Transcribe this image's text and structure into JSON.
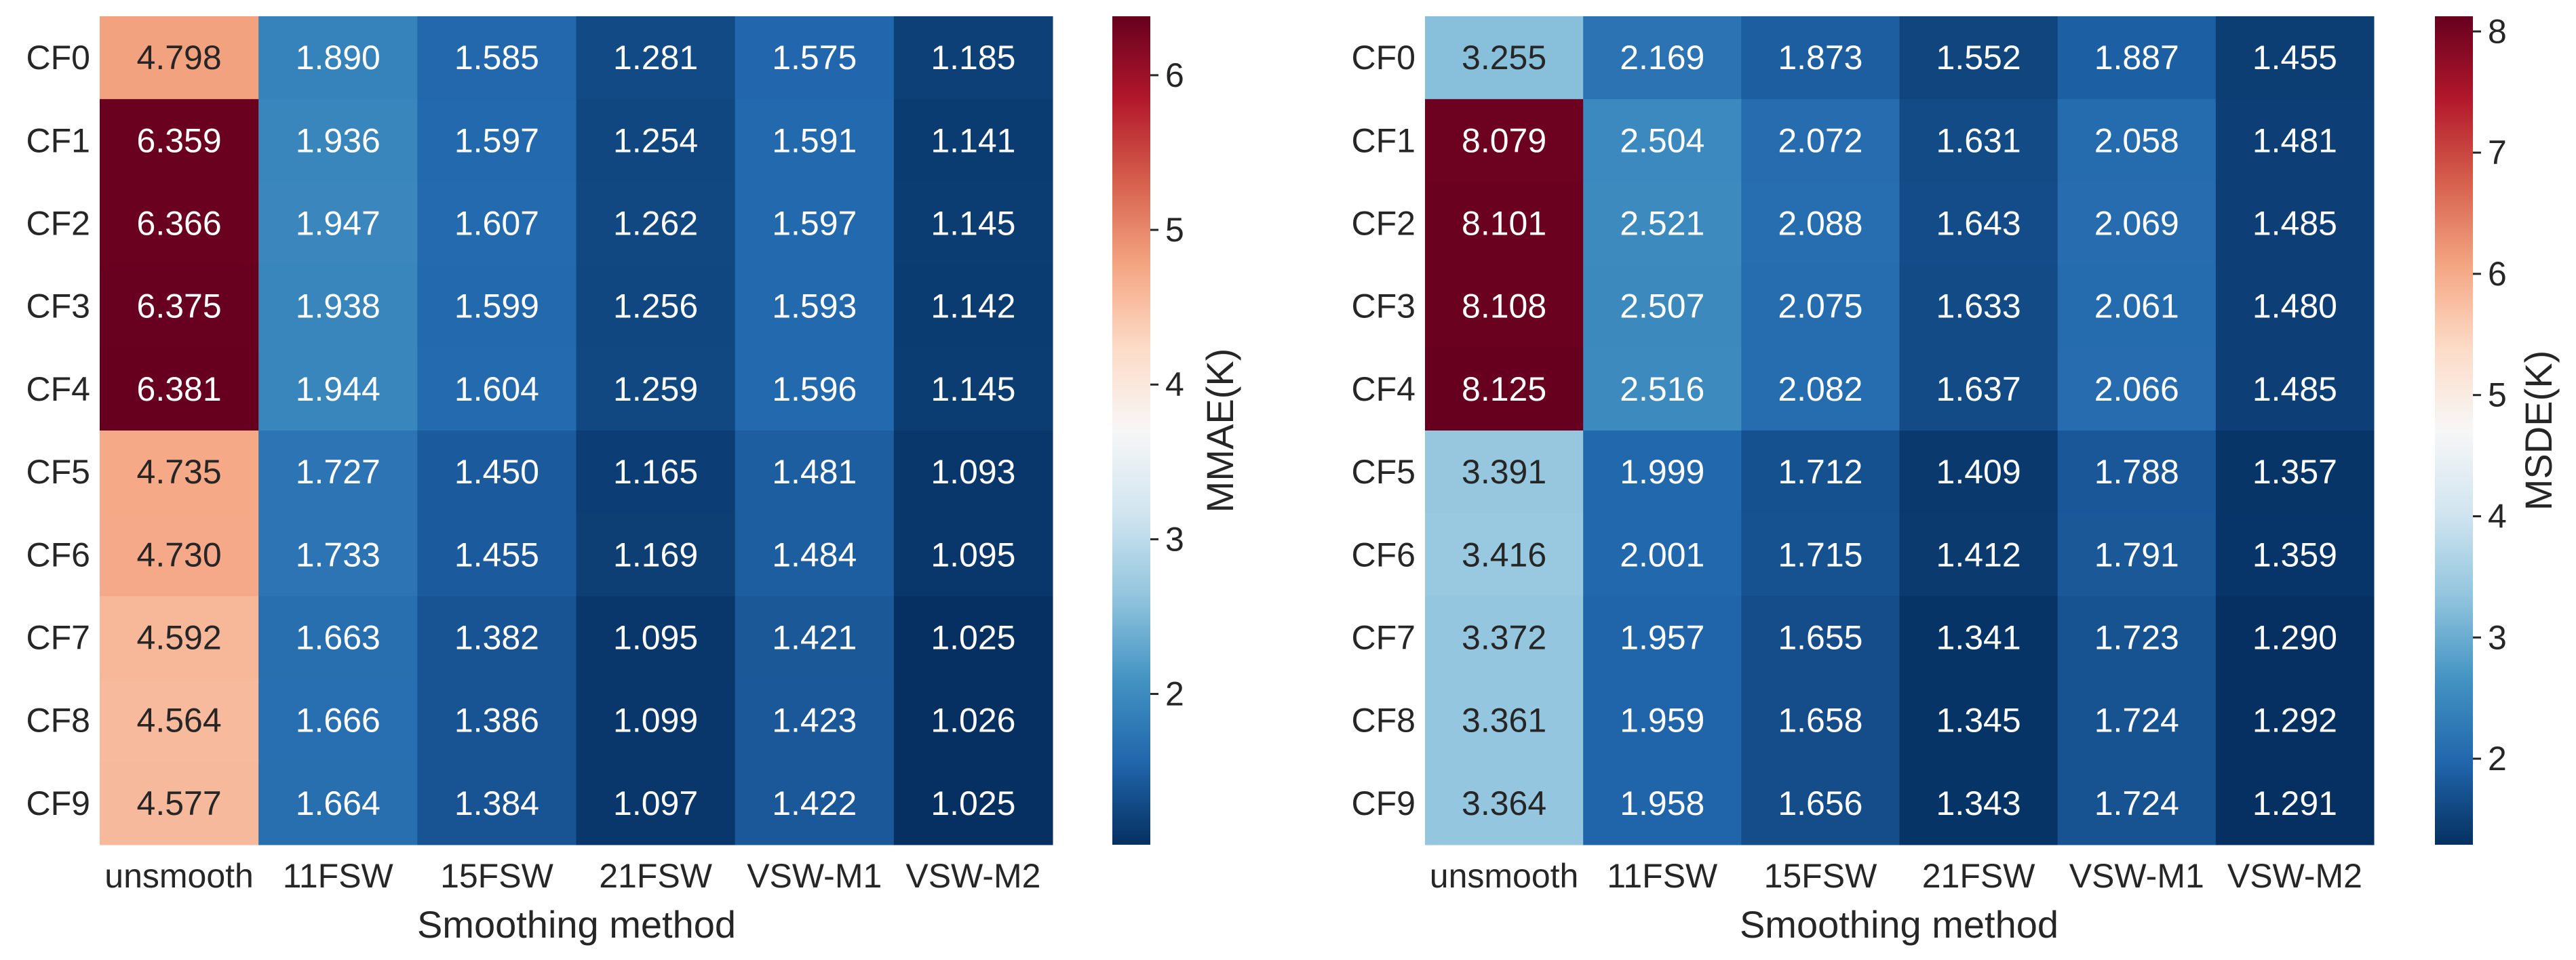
{
  "chart_data": [
    {
      "type": "heatmap",
      "rows": [
        "CF0",
        "CF1",
        "CF2",
        "CF3",
        "CF4",
        "CF5",
        "CF6",
        "CF7",
        "CF8",
        "CF9"
      ],
      "columns": [
        "unsmooth",
        "11FSW",
        "15FSW",
        "21FSW",
        "VSW-M1",
        "VSW-M2"
      ],
      "values": [
        [
          4.798,
          1.89,
          1.585,
          1.281,
          1.575,
          1.185
        ],
        [
          6.359,
          1.936,
          1.597,
          1.254,
          1.591,
          1.141
        ],
        [
          6.366,
          1.947,
          1.607,
          1.262,
          1.597,
          1.145
        ],
        [
          6.375,
          1.938,
          1.599,
          1.256,
          1.593,
          1.142
        ],
        [
          6.381,
          1.944,
          1.604,
          1.259,
          1.596,
          1.145
        ],
        [
          4.735,
          1.727,
          1.45,
          1.165,
          1.481,
          1.093
        ],
        [
          4.73,
          1.733,
          1.455,
          1.169,
          1.484,
          1.095
        ],
        [
          4.592,
          1.663,
          1.382,
          1.095,
          1.421,
          1.025
        ],
        [
          4.564,
          1.666,
          1.386,
          1.099,
          1.423,
          1.026
        ],
        [
          4.577,
          1.664,
          1.384,
          1.097,
          1.422,
          1.025
        ]
      ],
      "xlabel": "Smoothing method",
      "colorbar_label": "MMAE(K)",
      "colorbar_range": [
        1.025,
        6.381
      ],
      "colorbar_ticks": [
        2,
        3,
        4,
        5,
        6
      ],
      "colormap": "RdBu_r"
    },
    {
      "type": "heatmap",
      "rows": [
        "CF0",
        "CF1",
        "CF2",
        "CF3",
        "CF4",
        "CF5",
        "CF6",
        "CF7",
        "CF8",
        "CF9"
      ],
      "columns": [
        "unsmooth",
        "11FSW",
        "15FSW",
        "21FSW",
        "VSW-M1",
        "VSW-M2"
      ],
      "values": [
        [
          3.255,
          2.169,
          1.873,
          1.552,
          1.887,
          1.455
        ],
        [
          8.079,
          2.504,
          2.072,
          1.631,
          2.058,
          1.481
        ],
        [
          8.101,
          2.521,
          2.088,
          1.643,
          2.069,
          1.485
        ],
        [
          8.108,
          2.507,
          2.075,
          1.633,
          2.061,
          1.48
        ],
        [
          8.125,
          2.516,
          2.082,
          1.637,
          2.066,
          1.485
        ],
        [
          3.391,
          1.999,
          1.712,
          1.409,
          1.788,
          1.357
        ],
        [
          3.416,
          2.001,
          1.715,
          1.412,
          1.791,
          1.359
        ],
        [
          3.372,
          1.957,
          1.655,
          1.341,
          1.723,
          1.29
        ],
        [
          3.361,
          1.959,
          1.658,
          1.345,
          1.724,
          1.292
        ],
        [
          3.364,
          1.958,
          1.656,
          1.343,
          1.724,
          1.291
        ]
      ],
      "xlabel": "Smoothing method",
      "colorbar_label": "MSDE(K)",
      "colorbar_range": [
        1.29,
        8.125
      ],
      "colorbar_ticks": [
        2,
        3,
        4,
        5,
        6,
        7,
        8
      ],
      "colormap": "RdBu_r"
    }
  ]
}
